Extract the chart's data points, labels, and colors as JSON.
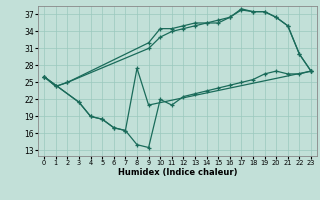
{
  "xlabel": "Humidex (Indice chaleur)",
  "background_color": "#c2e0d8",
  "grid_color": "#9ac8be",
  "line_color": "#1a6b5a",
  "xlim": [
    -0.5,
    23.5
  ],
  "ylim": [
    12,
    38.5
  ],
  "yticks": [
    13,
    16,
    19,
    22,
    25,
    28,
    31,
    34,
    37
  ],
  "xticks": [
    0,
    1,
    2,
    3,
    4,
    5,
    6,
    7,
    8,
    9,
    10,
    11,
    12,
    13,
    14,
    15,
    16,
    17,
    18,
    19,
    20,
    21,
    22,
    23
  ],
  "line1_x": [
    0,
    1,
    2,
    9,
    10,
    11,
    12,
    13,
    14,
    15,
    16,
    17,
    18,
    19,
    20,
    21,
    22,
    23
  ],
  "line1_y": [
    26.0,
    24.3,
    25.0,
    32.0,
    34.5,
    34.5,
    35.0,
    35.5,
    35.5,
    36.0,
    36.5,
    38.0,
    37.5,
    37.5,
    36.5,
    35.0,
    30.0,
    27.0
  ],
  "line2_x": [
    0,
    1,
    2,
    9,
    10,
    11,
    12,
    13,
    14,
    15,
    16,
    17,
    18,
    19,
    20,
    21,
    22,
    23
  ],
  "line2_y": [
    26.0,
    24.3,
    25.0,
    31.0,
    33.0,
    34.0,
    34.5,
    35.0,
    35.5,
    35.5,
    36.5,
    37.8,
    37.5,
    37.5,
    36.5,
    35.0,
    30.0,
    27.0
  ],
  "line3_x": [
    0,
    3,
    4,
    5,
    6,
    7,
    8,
    9,
    10,
    11,
    12,
    13,
    14,
    15,
    16,
    17,
    18,
    19,
    20,
    21,
    22,
    23
  ],
  "line3_y": [
    26.0,
    21.5,
    19.0,
    18.5,
    17.0,
    16.5,
    14.0,
    13.5,
    22.0,
    21.0,
    22.5,
    23.0,
    23.5,
    24.0,
    24.5,
    25.0,
    25.5,
    26.5,
    27.0,
    26.5,
    26.5,
    27.0
  ],
  "line4_x": [
    0,
    3,
    4,
    5,
    6,
    7,
    8,
    9,
    23
  ],
  "line4_y": [
    26.0,
    21.5,
    19.0,
    18.5,
    17.0,
    16.5,
    27.5,
    21.0,
    27.0
  ]
}
